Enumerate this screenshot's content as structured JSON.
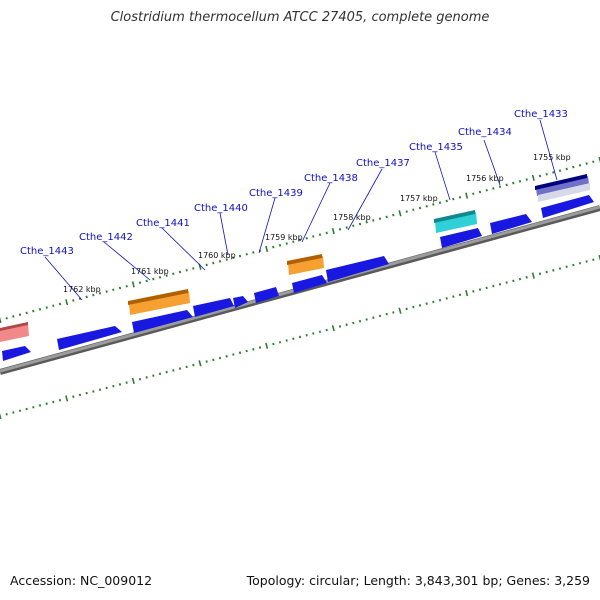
{
  "title": "Clostridium thermocellum ATCC 27405, complete genome",
  "footer": {
    "accession": "Accession: NC_009012",
    "summary": "Topology: circular; Length: 3,843,301 bp; Genes: 3,259"
  },
  "colors": {
    "backbone": "#808080",
    "tick": "#2e7d32",
    "gene_label": "#1010c0",
    "cds": "#1414e0",
    "orange": "#f0a020",
    "cyan": "#30c8d0",
    "pink": "#f08080",
    "purple": "#7070c0"
  },
  "kbp_labels": [
    {
      "text": "1755 kbp",
      "pos": 1755
    },
    {
      "text": "1756 kbp",
      "pos": 1756
    },
    {
      "text": "1757 kbp",
      "pos": 1757
    },
    {
      "text": "1758 kbp",
      "pos": 1758
    },
    {
      "text": "1759 kbp",
      "pos": 1759
    },
    {
      "text": "1760 kbp",
      "pos": 1760
    },
    {
      "text": "1761 kbp",
      "pos": 1761
    },
    {
      "text": "1762 kbp",
      "pos": 1762
    }
  ],
  "gene_labels": [
    {
      "text": "Cthe_1433"
    },
    {
      "text": "Cthe_1434"
    },
    {
      "text": "Cthe_1435"
    },
    {
      "text": "Cthe_1437"
    },
    {
      "text": "Cthe_1438"
    },
    {
      "text": "Cthe_1439"
    },
    {
      "text": "Cthe_1440"
    },
    {
      "text": "Cthe_1441"
    },
    {
      "text": "Cthe_1442"
    },
    {
      "text": "Cthe_1443"
    }
  ]
}
